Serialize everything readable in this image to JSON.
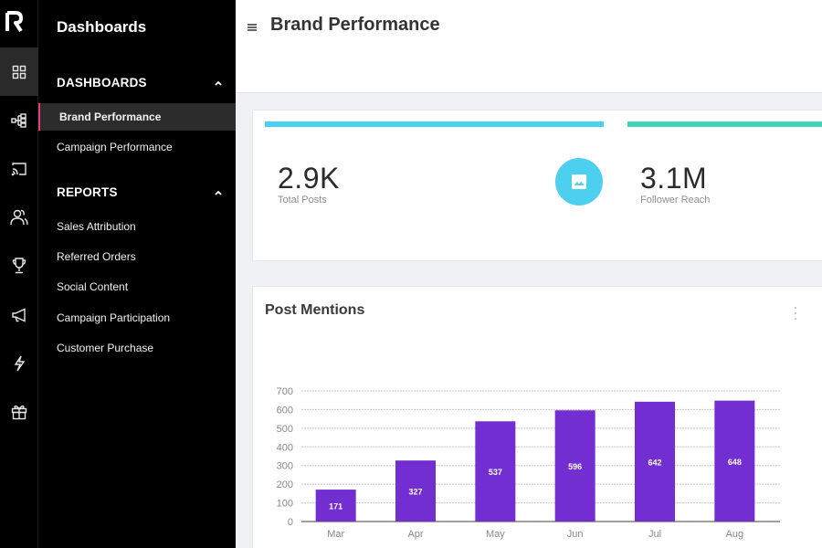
{
  "app": {
    "logo_icon": "r-logo-icon"
  },
  "rail": {
    "items": [
      {
        "icon": "grid-icon",
        "active": true
      },
      {
        "icon": "hierarchy-icon",
        "active": false
      },
      {
        "icon": "cast-icon",
        "active": false
      },
      {
        "icon": "users-icon",
        "active": false
      },
      {
        "icon": "trophy-icon",
        "active": false
      },
      {
        "icon": "megaphone-icon",
        "active": false
      },
      {
        "icon": "lightning-icon",
        "active": false
      },
      {
        "icon": "gift-icon",
        "active": false
      }
    ]
  },
  "nav": {
    "title": "Dashboards",
    "sections": [
      {
        "label": "DASHBOARDS",
        "expanded": true,
        "items": [
          {
            "label": "Brand Performance",
            "active": true
          },
          {
            "label": "Campaign Performance",
            "active": false
          }
        ]
      },
      {
        "label": "REPORTS",
        "expanded": true,
        "items": [
          {
            "label": "Sales Attribution",
            "active": false
          },
          {
            "label": "Referred Orders",
            "active": false
          },
          {
            "label": "Social Content",
            "active": false
          },
          {
            "label": "Campaign Participation",
            "active": false
          },
          {
            "label": "Customer Purchase",
            "active": false
          }
        ]
      }
    ]
  },
  "header": {
    "title": "Brand Performance",
    "menu_icon": "hamburger-icon"
  },
  "stats": [
    {
      "value": "2.9K",
      "label": "Total Posts",
      "color": "#4dd0f0",
      "icon": "image-icon"
    },
    {
      "value": "3.1M",
      "label": "Follower Reach",
      "color": "#40d4b8"
    }
  ],
  "chart_card": {
    "title": "Post Mentions",
    "menu_icon": "kebab-menu-icon"
  },
  "chart_data": {
    "type": "bar",
    "title": "Post Mentions",
    "categories": [
      "Mar",
      "Apr",
      "May",
      "Jun",
      "Jul",
      "Aug"
    ],
    "values": [
      171,
      327,
      537,
      596,
      642,
      648
    ],
    "data_labels": [
      "171",
      "327",
      "537",
      "596",
      "642",
      "648"
    ],
    "yticks": [
      "0",
      "100",
      "200",
      "300",
      "400",
      "500",
      "600",
      "700"
    ],
    "ylim": [
      0,
      700
    ],
    "xlabel": "",
    "ylabel": "",
    "grid": true,
    "bar_color": "#722ed1"
  }
}
